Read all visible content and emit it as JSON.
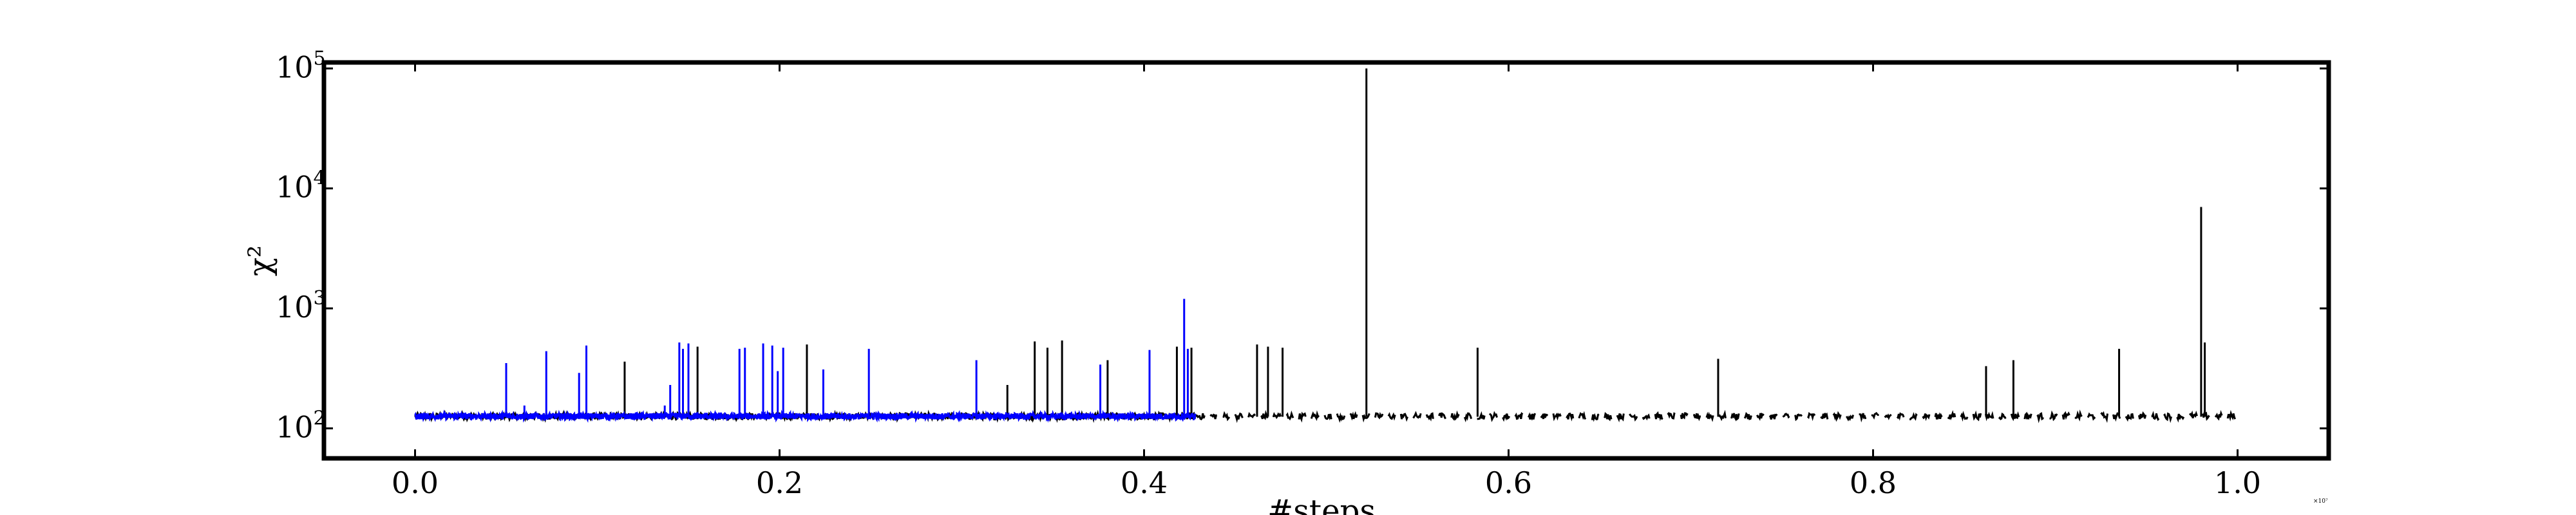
{
  "chart_data": {
    "type": "line",
    "title": "",
    "xlabel": "#steps",
    "ylabel": "χ²",
    "x_multiplier_label": "×10⁷",
    "x_scale_exponent": 7,
    "xlim": [
      -0.05,
      1.05
    ],
    "ylim_log10": [
      1.75,
      5.05
    ],
    "yscale": "log",
    "grid": false,
    "legend": "none",
    "x_ticks": [
      {
        "value": 0.0,
        "label": "0.0"
      },
      {
        "value": 0.2,
        "label": "0.2"
      },
      {
        "value": 0.4,
        "label": "0.4"
      },
      {
        "value": 0.6,
        "label": "0.6"
      },
      {
        "value": 0.8,
        "label": "0.8"
      },
      {
        "value": 1.0,
        "label": "1.0"
      }
    ],
    "y_ticks": [
      {
        "exponent": 2,
        "base": "10",
        "label": "2"
      },
      {
        "exponent": 3,
        "base": "10",
        "label": "3"
      },
      {
        "exponent": 4,
        "base": "10",
        "label": "4"
      },
      {
        "exponent": 5,
        "base": "10",
        "label": "5"
      }
    ],
    "series": [
      {
        "color": "#000000",
        "x_range": [
          0.0,
          1.0
        ],
        "baseline": 125,
        "spikes": [
          {
            "x": 0.115,
            "y": 360
          },
          {
            "x": 0.155,
            "y": 480
          },
          {
            "x": 0.215,
            "y": 500
          },
          {
            "x": 0.325,
            "y": 230
          },
          {
            "x": 0.34,
            "y": 530
          },
          {
            "x": 0.347,
            "y": 470
          },
          {
            "x": 0.355,
            "y": 540
          },
          {
            "x": 0.38,
            "y": 370
          },
          {
            "x": 0.418,
            "y": 480
          },
          {
            "x": 0.426,
            "y": 470
          },
          {
            "x": 0.462,
            "y": 500
          },
          {
            "x": 0.468,
            "y": 480
          },
          {
            "x": 0.476,
            "y": 470
          },
          {
            "x": 0.522,
            "y": 100000
          },
          {
            "x": 0.583,
            "y": 470
          },
          {
            "x": 0.715,
            "y": 380
          },
          {
            "x": 0.862,
            "y": 330
          },
          {
            "x": 0.877,
            "y": 370
          },
          {
            "x": 0.935,
            "y": 460
          },
          {
            "x": 0.98,
            "y": 7000
          },
          {
            "x": 0.982,
            "y": 520
          }
        ]
      },
      {
        "color": "#0000ff",
        "x_range": [
          0.0,
          0.428
        ],
        "baseline": 125,
        "spikes": [
          {
            "x": 0.05,
            "y": 350
          },
          {
            "x": 0.06,
            "y": 155
          },
          {
            "x": 0.072,
            "y": 440
          },
          {
            "x": 0.09,
            "y": 290
          },
          {
            "x": 0.094,
            "y": 490
          },
          {
            "x": 0.137,
            "y": 155
          },
          {
            "x": 0.14,
            "y": 230
          },
          {
            "x": 0.145,
            "y": 520
          },
          {
            "x": 0.147,
            "y": 460
          },
          {
            "x": 0.15,
            "y": 510
          },
          {
            "x": 0.178,
            "y": 460
          },
          {
            "x": 0.181,
            "y": 470
          },
          {
            "x": 0.191,
            "y": 510
          },
          {
            "x": 0.196,
            "y": 490
          },
          {
            "x": 0.199,
            "y": 300
          },
          {
            "x": 0.202,
            "y": 470
          },
          {
            "x": 0.224,
            "y": 310
          },
          {
            "x": 0.249,
            "y": 460
          },
          {
            "x": 0.308,
            "y": 370
          },
          {
            "x": 0.376,
            "y": 340
          },
          {
            "x": 0.403,
            "y": 450
          },
          {
            "x": 0.422,
            "y": 1200
          },
          {
            "x": 0.424,
            "y": 460
          }
        ]
      }
    ]
  }
}
